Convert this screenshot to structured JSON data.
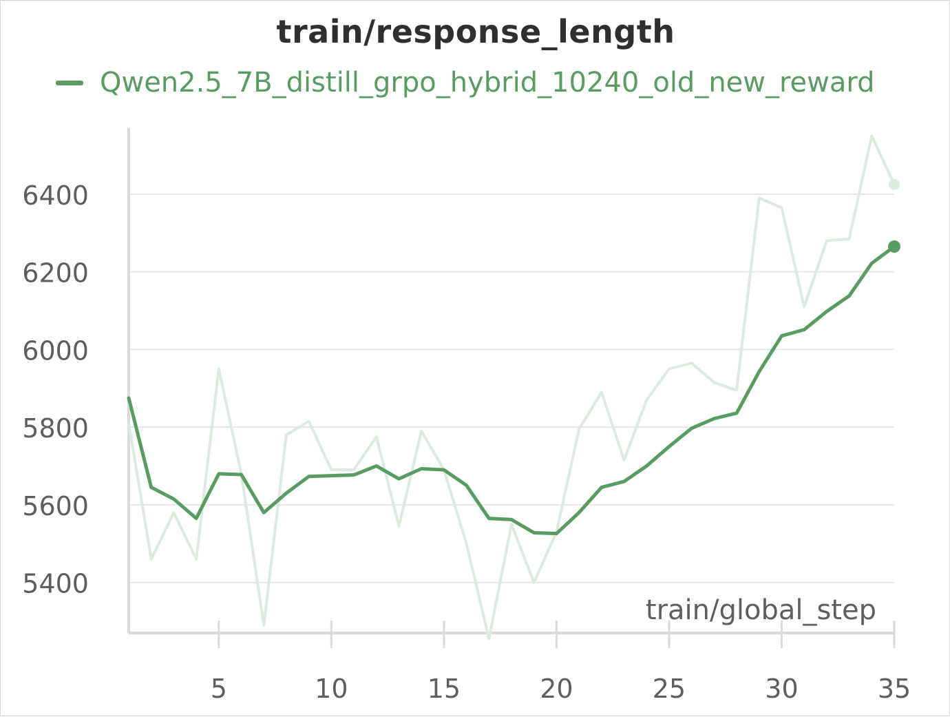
{
  "chart_data": {
    "type": "line",
    "title": "train/response_length",
    "xlabel": "train/global_step",
    "ylabel": "",
    "xlim": [
      1,
      35
    ],
    "ylim": [
      5270,
      6570
    ],
    "xticks": [
      5,
      10,
      15,
      20,
      25,
      30,
      35
    ],
    "yticks": [
      5400,
      5600,
      5800,
      6000,
      6200,
      6400
    ],
    "grid": "horizontal",
    "legend_position": "top-left",
    "series": [
      {
        "name": "Qwen2.5_7B_distill_grpo_hybrid_10240_old_new_reward",
        "color": "#5a9a63",
        "raw_color": "#dcebdd",
        "x": [
          1,
          2,
          3,
          4,
          5,
          6,
          7,
          8,
          9,
          10,
          11,
          12,
          13,
          14,
          15,
          16,
          17,
          18,
          19,
          20,
          21,
          22,
          23,
          24,
          25,
          26,
          27,
          28,
          29,
          30,
          31,
          32,
          33,
          34,
          35
        ],
        "raw": [
          5810,
          5460,
          5580,
          5460,
          5950,
          5680,
          5290,
          5780,
          5815,
          5690,
          5690,
          5775,
          5545,
          5790,
          5690,
          5500,
          5255,
          5550,
          5400,
          5530,
          5795,
          5890,
          5715,
          5870,
          5950,
          5965,
          5915,
          5895,
          6390,
          6365,
          6110,
          6280,
          6285,
          6550,
          6425
        ],
        "smoothed": [
          5875,
          5645,
          5615,
          5565,
          5680,
          5678,
          5580,
          5630,
          5673,
          5675,
          5677,
          5700,
          5667,
          5693,
          5690,
          5650,
          5565,
          5562,
          5528,
          5526,
          5580,
          5645,
          5660,
          5700,
          5750,
          5797,
          5822,
          5836,
          5943,
          6035,
          6051,
          6098,
          6138,
          6222,
          6265
        ]
      }
    ]
  }
}
